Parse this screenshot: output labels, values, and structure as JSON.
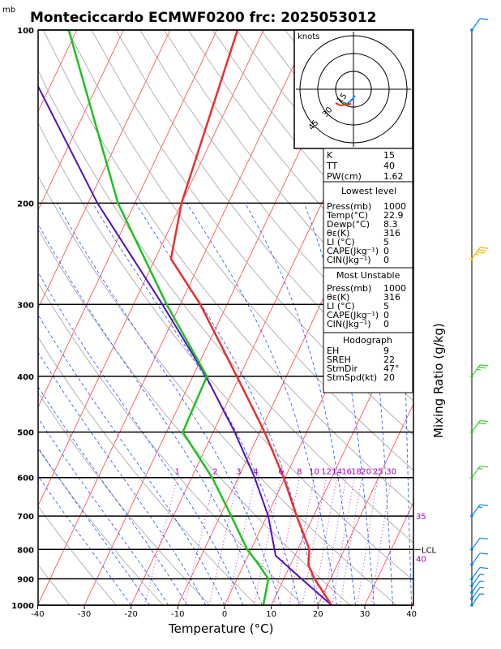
{
  "chart_data": {
    "type": "skew-t",
    "title": "Monteciccardo ECMWF0200 frc: 2025053012",
    "units_top": "mb",
    "xlabel": "Temperature (°C)",
    "ylabel_right": "Mixing Ratio (g/kg)",
    "x_ticks": [
      -40,
      -30,
      -20,
      -10,
      0,
      10,
      20,
      30,
      40
    ],
    "pressure_levels": [
      100,
      200,
      300,
      400,
      500,
      600,
      700,
      800,
      900,
      1000
    ],
    "temperature_profile": [
      {
        "p": 1000,
        "t": 22.9
      },
      {
        "p": 900,
        "t": 16.6
      },
      {
        "p": 850,
        "t": 13.8
      },
      {
        "p": 800,
        "t": 12.5
      },
      {
        "p": 700,
        "t": 6.4
      },
      {
        "p": 600,
        "t": -0.3
      },
      {
        "p": 500,
        "t": -9.0
      },
      {
        "p": 400,
        "t": -20.6
      },
      {
        "p": 300,
        "t": -35.7
      },
      {
        "p": 250,
        "t": -46.6
      },
      {
        "p": 200,
        "t": -50.0
      },
      {
        "p": 100,
        "t": -55.6
      }
    ],
    "dewpoint_profile": [
      {
        "p": 1000,
        "t": 8.3
      },
      {
        "p": 900,
        "t": 6.7
      },
      {
        "p": 850,
        "t": 3.2
      },
      {
        "p": 800,
        "t": -0.8
      },
      {
        "p": 700,
        "t": -7.6
      },
      {
        "p": 600,
        "t": -15.6
      },
      {
        "p": 500,
        "t": -26.5
      },
      {
        "p": 400,
        "t": -27.0
      },
      {
        "p": 300,
        "t": -42.9
      },
      {
        "p": 200,
        "t": -63.6
      },
      {
        "p": 100,
        "t": -91.7
      }
    ],
    "parcel_profile": [
      {
        "p": 1000,
        "t": 22.9
      },
      {
        "p": 900,
        "t": 13.8
      },
      {
        "p": 820,
        "t": 5.9
      },
      {
        "p": 700,
        "t": 0.3
      },
      {
        "p": 600,
        "t": -6.5
      },
      {
        "p": 500,
        "t": -15.4
      },
      {
        "p": 400,
        "t": -27.2
      },
      {
        "p": 300,
        "t": -43.8
      },
      {
        "p": 200,
        "t": -68.0
      },
      {
        "p": 100,
        "t": -104.4
      }
    ],
    "lcl_label": "LCL",
    "lcl_pressure": 800,
    "mixing_ratio_labels": [
      "1",
      "2",
      "3",
      "4",
      "6",
      "8",
      "10",
      "12",
      "14",
      "16",
      "18",
      "20",
      "25",
      "30"
    ],
    "mixing_ratio_values": [
      1,
      2,
      3,
      4,
      6,
      8,
      10,
      12,
      14,
      16,
      18,
      20,
      25,
      30
    ],
    "right_marks": [
      {
        "label": "35",
        "p": 700
      },
      {
        "label": "40",
        "p": 830
      }
    ]
  },
  "hodograph": {
    "units": "knots",
    "ring_labels": [
      "15",
      "30",
      "45"
    ]
  },
  "indices": {
    "k_label": "K",
    "k": "15",
    "tt_label": "TT",
    "tt": "40",
    "pw_label": "PW(cm)",
    "pw": "1.62"
  },
  "lowest_level": {
    "header": "Lowest level",
    "rows": [
      {
        "label": "Press(mb)",
        "value": "1000"
      },
      {
        "label": "Temp(°C)",
        "value": "22.9"
      },
      {
        "label": "Dewp(°C)",
        "value": "8.3"
      },
      {
        "label": "θε(K)",
        "value": "316"
      },
      {
        "label": "LI (°C)",
        "value": "5"
      },
      {
        "label": "CAPE(Jkg⁻¹)",
        "value": "0"
      },
      {
        "label": "CIN(Jkg⁻¹)",
        "value": "0"
      }
    ]
  },
  "most_unstable": {
    "header": "Most Unstable",
    "rows": [
      {
        "label": "Press(mb)",
        "value": "1000"
      },
      {
        "label": "θε(K)",
        "value": "316"
      },
      {
        "label": "LI (°C)",
        "value": "5"
      },
      {
        "label": "CAPE(Jkg⁻¹)",
        "value": "0"
      },
      {
        "label": "CIN(Jkg⁻¹)",
        "value": "0"
      }
    ]
  },
  "hodograph_params": {
    "header": "Hodograph",
    "rows": [
      {
        "label": "EH",
        "value": "9"
      },
      {
        "label": "SREH",
        "value": "22"
      },
      {
        "label": "StmDir",
        "value": "47°"
      },
      {
        "label": "StmSpd(kt)",
        "value": "20"
      }
    ]
  },
  "colors": {
    "temperature": "#e83030",
    "dewpoint": "#20c020",
    "parcel": "#5010c0",
    "isotherm": "#ff4040",
    "dry_adiabat": "#a0a0a0",
    "moist_adiabat": "#2050ff",
    "mixing_ratio": "#a000c0",
    "wind_cold": "#0080ff",
    "wind_mid": "#30d030",
    "wind_warm": "#e0c000"
  },
  "wind_barbs": [
    {
      "p": 1000,
      "speed_kt": 5,
      "color": "wind_cold"
    },
    {
      "p": 975,
      "speed_kt": 5,
      "color": "wind_cold"
    },
    {
      "p": 950,
      "speed_kt": 5,
      "color": "wind_cold"
    },
    {
      "p": 925,
      "speed_kt": 5,
      "color": "wind_cold"
    },
    {
      "p": 900,
      "speed_kt": 10,
      "color": "wind_cold"
    },
    {
      "p": 850,
      "speed_kt": 10,
      "color": "wind_cold"
    },
    {
      "p": 800,
      "speed_kt": 10,
      "color": "wind_cold"
    },
    {
      "p": 700,
      "speed_kt": 15,
      "color": "wind_cold"
    },
    {
      "p": 600,
      "speed_kt": 15,
      "color": "wind_mid"
    },
    {
      "p": 500,
      "speed_kt": 20,
      "color": "wind_mid"
    },
    {
      "p": 400,
      "speed_kt": 25,
      "color": "wind_mid"
    },
    {
      "p": 250,
      "speed_kt": 35,
      "color": "wind_warm"
    },
    {
      "p": 100,
      "speed_kt": 10,
      "color": "wind_cold"
    }
  ]
}
